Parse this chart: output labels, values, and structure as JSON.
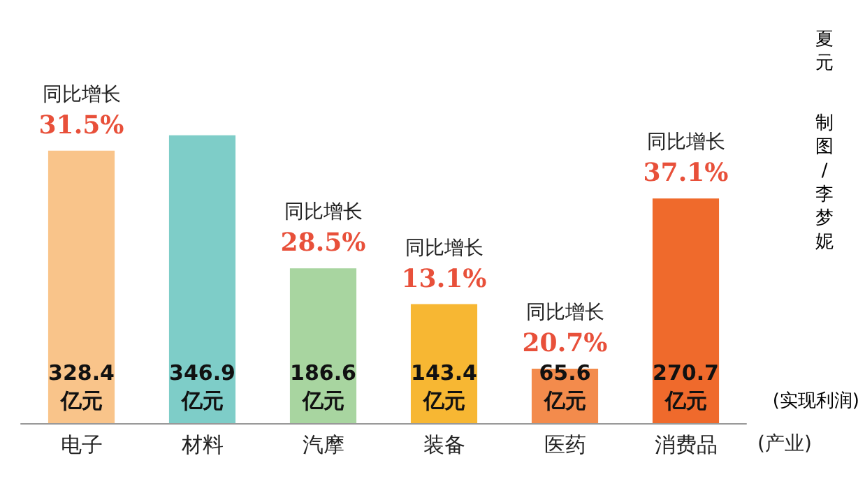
{
  "chart_data": {
    "type": "bar",
    "categories": [
      "电子",
      "材料",
      "汽摩",
      "装备",
      "医药",
      "消费品"
    ],
    "values": [
      328.4,
      346.9,
      186.6,
      143.4,
      65.6,
      270.7
    ],
    "colors": [
      "#f9c48a",
      "#7ecdc8",
      "#a8d5a0",
      "#f7b733",
      "#f38b4c",
      "#ef6a2c"
    ],
    "value_labels": [
      "328.4亿元",
      "346.9亿元",
      "186.6亿元",
      "143.4亿元",
      "65.6亿元",
      "270.7亿元"
    ],
    "ylabel": "(实现利润)",
    "xlabel": "(产业)",
    "annotations": [
      {
        "text": "同比增长\n31.5%",
        "x": "电子",
        "y": 328.4
      },
      {
        "text": "同比增长\n28.5%",
        "x": "汽摩",
        "y": 186.6
      },
      {
        "text": "同比增长\n13.1%",
        "x": "装备",
        "y": 143.4
      },
      {
        "text": "同比增长\n20.7%",
        "x": "医药",
        "y": 65.6
      },
      {
        "text": "同比增长\n37.1%",
        "x": "消费品",
        "y": 270.7
      },
      "夏元",
      "制图/李梦妮"
    ]
  }
}
